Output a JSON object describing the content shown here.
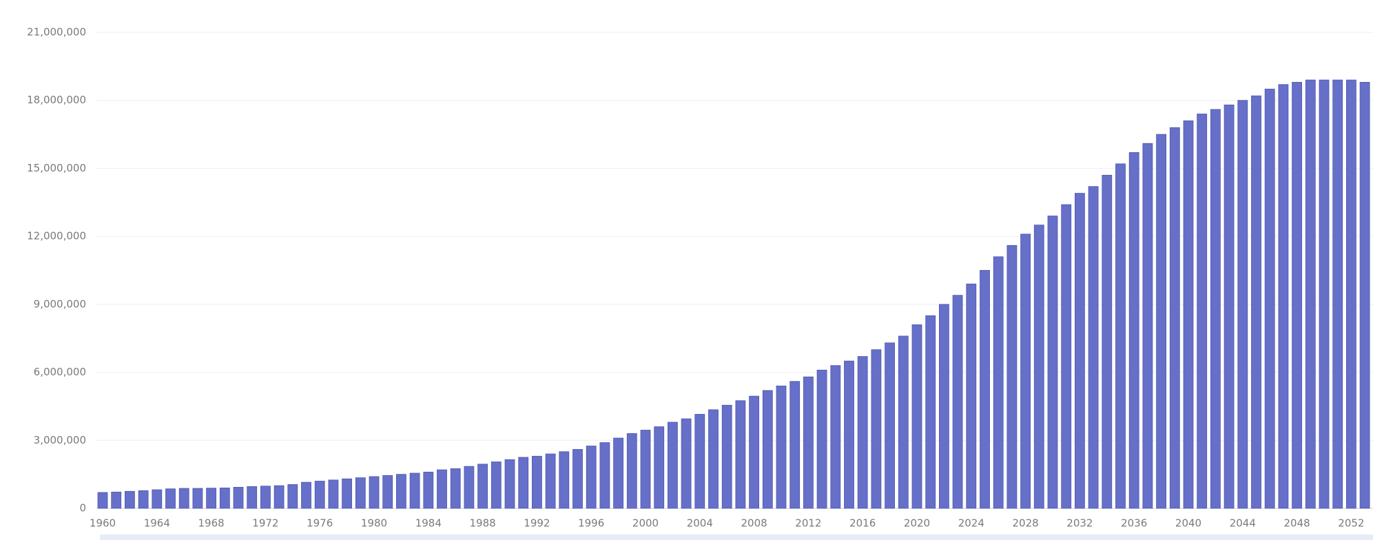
{
  "chart_data": {
    "type": "bar",
    "color": "#6670c8",
    "grid": true,
    "categories": [
      "1960",
      null,
      null,
      null,
      "1964",
      null,
      null,
      null,
      "1968",
      null,
      null,
      null,
      "1972",
      null,
      null,
      null,
      "1976",
      null,
      null,
      null,
      "1980",
      null,
      null,
      null,
      "1984",
      null,
      null,
      null,
      "1988",
      null,
      null,
      null,
      "1992",
      null,
      null,
      null,
      "1996",
      null,
      null,
      null,
      "2000",
      null,
      null,
      null,
      "2004",
      null,
      null,
      null,
      "2008",
      null,
      null,
      null,
      "2012",
      null,
      null,
      null,
      "2016",
      null,
      null,
      null,
      "2020",
      null,
      null,
      null,
      "2024",
      null,
      null,
      null,
      "2028",
      null,
      null,
      null,
      "2032",
      null,
      null,
      null,
      "2036",
      null,
      null,
      null,
      "2040",
      null,
      null,
      null,
      "2044",
      null,
      null,
      null,
      "2048",
      null,
      null,
      null,
      "2052",
      null
    ],
    "values": [
      700000,
      720000,
      750000,
      780000,
      820000,
      860000,
      880000,
      880000,
      890000,
      900000,
      930000,
      960000,
      980000,
      1000000,
      1050000,
      1150000,
      1200000,
      1250000,
      1300000,
      1350000,
      1400000,
      1450000,
      1500000,
      1550000,
      1600000,
      1700000,
      1750000,
      1850000,
      1950000,
      2050000,
      2150000,
      2250000,
      2300000,
      2400000,
      2500000,
      2600000,
      2750000,
      2900000,
      3100000,
      3300000,
      3450000,
      3600000,
      3800000,
      3950000,
      4150000,
      4350000,
      4550000,
      4750000,
      4950000,
      5200000,
      5400000,
      5600000,
      5800000,
      6100000,
      6300000,
      6500000,
      6700000,
      7000000,
      7300000,
      7600000,
      8100000,
      8500000,
      9000000,
      9400000,
      9900000,
      10500000,
      11100000,
      11600000,
      12100000,
      12500000,
      12900000,
      13400000,
      13900000,
      14200000,
      14700000,
      15200000,
      15700000,
      16100000,
      16500000,
      16800000,
      17100000,
      17400000,
      17600000,
      17800000,
      18000000,
      18200000,
      18500000,
      18700000,
      18800000,
      18900000,
      18900000,
      18900000,
      18900000,
      18800000
    ],
    "ylim": [
      0,
      21000000
    ],
    "yticks": [
      0,
      {
        "value": 3000000,
        "label": "3,000,000"
      },
      {
        "value": 6000000,
        "label": "6,000,000"
      },
      {
        "value": 9000000,
        "label": "9,000,000"
      },
      {
        "value": 12000000,
        "label": "12,000,000"
      },
      {
        "value": 15000000,
        "label": "15,000,000"
      },
      {
        "value": 18000000,
        "label": "18,000,000"
      },
      {
        "value": 21000000,
        "label": "21,000,000"
      }
    ]
  }
}
